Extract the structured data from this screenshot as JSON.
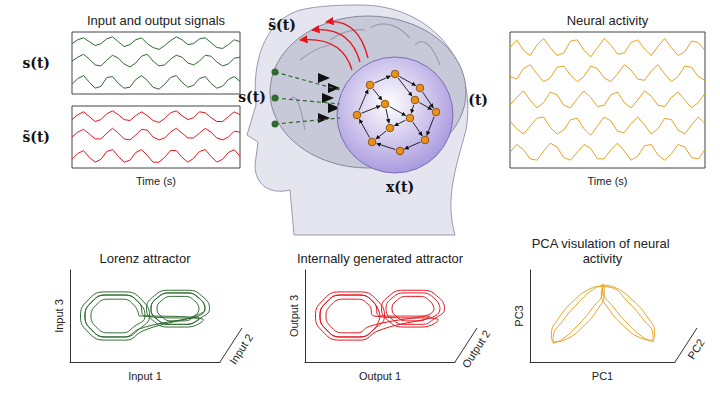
{
  "chart_data": [
    {
      "type": "line",
      "title": "Input and output signals",
      "ylabel": "s(t)",
      "tick_labels": false,
      "ylim": [
        0,
        3.2
      ],
      "series": [
        {
          "color": "#2f6a2f",
          "values": [
            2.6,
            2.8,
            2.9,
            2.7,
            2.5,
            2.6,
            2.85,
            2.95,
            2.7,
            2.45,
            2.55,
            2.8,
            2.9,
            2.6,
            2.4,
            2.3,
            2.5,
            2.75,
            2.95,
            2.8,
            2.55,
            2.6,
            2.85,
            2.9,
            2.65,
            2.4,
            2.35,
            2.55,
            2.8,
            2.7
          ]
        },
        {
          "color": "#2f6a2f",
          "values": [
            1.7,
            1.9,
            2.05,
            1.8,
            1.5,
            1.45,
            1.75,
            2.0,
            1.85,
            1.55,
            1.4,
            1.6,
            1.95,
            2.05,
            1.7,
            1.45,
            1.5,
            1.8,
            2.0,
            1.9,
            1.6,
            1.5,
            1.7,
            2.0,
            1.95,
            1.65,
            1.45,
            1.55,
            1.85,
            1.9
          ]
        },
        {
          "color": "#2f6a2f",
          "values": [
            0.5,
            0.8,
            0.95,
            0.6,
            0.3,
            0.4,
            0.85,
            0.9,
            0.55,
            0.3,
            0.35,
            0.75,
            0.95,
            0.7,
            0.35,
            0.25,
            0.5,
            0.85,
            0.95,
            0.6,
            0.35,
            0.45,
            0.8,
            0.9,
            0.55,
            0.3,
            0.4,
            0.75,
            0.9,
            0.65
          ]
        }
      ]
    },
    {
      "type": "line",
      "ylabel": "s̃(t)",
      "xlabel": "Time (s)",
      "tick_labels": false,
      "ylim": [
        0,
        3.2
      ],
      "series": [
        {
          "color": "#e8141c",
          "values": [
            2.5,
            2.75,
            2.9,
            2.65,
            2.4,
            2.5,
            2.8,
            2.95,
            2.75,
            2.5,
            2.45,
            2.7,
            2.9,
            2.7,
            2.45,
            2.35,
            2.55,
            2.85,
            2.95,
            2.7,
            2.5,
            2.6,
            2.9,
            2.85,
            2.6,
            2.4,
            2.4,
            2.65,
            2.9,
            2.75
          ]
        },
        {
          "color": "#e8141c",
          "values": [
            1.6,
            1.85,
            2.0,
            1.75,
            1.5,
            1.5,
            1.8,
            2.05,
            1.8,
            1.5,
            1.45,
            1.7,
            2.0,
            1.95,
            1.6,
            1.45,
            1.55,
            1.85,
            2.05,
            1.8,
            1.55,
            1.55,
            1.8,
            2.05,
            1.85,
            1.55,
            1.45,
            1.6,
            1.9,
            1.85
          ]
        },
        {
          "color": "#e8141c",
          "values": [
            0.45,
            0.75,
            0.9,
            0.55,
            0.3,
            0.45,
            0.85,
            0.95,
            0.6,
            0.3,
            0.4,
            0.8,
            0.95,
            0.65,
            0.3,
            0.3,
            0.55,
            0.9,
            0.9,
            0.55,
            0.3,
            0.5,
            0.85,
            0.95,
            0.6,
            0.3,
            0.45,
            0.8,
            0.95,
            0.6
          ]
        }
      ]
    },
    {
      "type": "line",
      "title": "Neural activity",
      "ylabel": "xᵢ(t)",
      "xlabel": "Time (s)",
      "tick_labels": false,
      "ylim": [
        0,
        5.2
      ],
      "series": [
        {
          "color": "#e6a322",
          "values": [
            4.6,
            4.9,
            4.5,
            4.3,
            4.7,
            4.95,
            4.6,
            4.3,
            4.4,
            4.85,
            4.9,
            4.5,
            4.25,
            4.6,
            4.95,
            4.7,
            4.35,
            4.4,
            4.8,
            4.9,
            4.55,
            4.3,
            4.65,
            4.95,
            4.6,
            4.3,
            4.45,
            4.85,
            4.8,
            4.5
          ]
        },
        {
          "color": "#e6a322",
          "values": [
            3.5,
            3.4,
            3.8,
            3.95,
            3.6,
            3.3,
            3.45,
            3.85,
            3.9,
            3.55,
            3.3,
            3.5,
            3.9,
            3.8,
            3.45,
            3.3,
            3.6,
            3.95,
            3.75,
            3.4,
            3.35,
            3.7,
            3.95,
            3.6,
            3.3,
            3.5,
            3.9,
            3.85,
            3.5,
            3.35
          ]
        },
        {
          "color": "#e6a322",
          "values": [
            2.4,
            2.7,
            2.95,
            2.6,
            2.3,
            2.5,
            2.9,
            2.8,
            2.4,
            2.3,
            2.65,
            2.95,
            2.7,
            2.35,
            2.4,
            2.8,
            2.9,
            2.5,
            2.3,
            2.6,
            2.95,
            2.75,
            2.4,
            2.35,
            2.7,
            2.9,
            2.6,
            2.3,
            2.5,
            2.85
          ]
        },
        {
          "color": "#e6a322",
          "values": [
            1.8,
            1.5,
            1.3,
            1.6,
            1.9,
            1.95,
            1.55,
            1.3,
            1.45,
            1.85,
            1.9,
            1.5,
            1.25,
            1.6,
            1.95,
            1.8,
            1.4,
            1.35,
            1.7,
            1.95,
            1.65,
            1.3,
            1.5,
            1.9,
            1.85,
            1.45,
            1.3,
            1.65,
            1.95,
            1.7
          ]
        },
        {
          "color": "#e6a322",
          "values": [
            0.6,
            0.9,
            0.7,
            0.35,
            0.3,
            0.65,
            0.95,
            0.8,
            0.4,
            0.3,
            0.6,
            0.9,
            0.75,
            0.35,
            0.35,
            0.7,
            0.95,
            0.65,
            0.3,
            0.45,
            0.85,
            0.9,
            0.5,
            0.3,
            0.55,
            0.9,
            0.8,
            0.4,
            0.35,
            0.7
          ]
        }
      ]
    },
    {
      "type": "line",
      "title": "Lorenz attractor",
      "xlabel": "Input 1",
      "ylabel": "Input 3",
      "zlabel": "Input 2",
      "tick_labels": false,
      "xlim": [
        0,
        100
      ],
      "ylim": [
        0,
        100
      ],
      "color": "#2f6a2f",
      "x": [
        46,
        42.9,
        34.9,
        25.1,
        17.1,
        14,
        17.1,
        25.1,
        34.9,
        42.9,
        50,
        46.2,
        36.2,
        23.8,
        13.8,
        10,
        13.8,
        23.8,
        36.2,
        46.2,
        53,
        48.6,
        37.1,
        22.9,
        11.4,
        7,
        11.4,
        22.9,
        37.1,
        48.6,
        86,
        83.3,
        76.3,
        67.7,
        60.7,
        58,
        60.7,
        67.7,
        76.3,
        83.3,
        90,
        86.6,
        77.6,
        66.4,
        57.4,
        54,
        57.4,
        66.4,
        77.6,
        86.6,
        93,
        89,
        78.5,
        65.5,
        55,
        51,
        55,
        65.5,
        78.5,
        89,
        50,
        46.2,
        36.2,
        23.8,
        13.8,
        10,
        13.8,
        23.8,
        36.2,
        46.2,
        90,
        86.6,
        77.6,
        66.4,
        57.4,
        54,
        57.4,
        66.4,
        77.6,
        86.6,
        46
      ],
      "values": [
        50,
        61.3,
        68.3,
        68.3,
        61.3,
        50,
        38.7,
        31.7,
        31.7,
        38.7,
        50,
        64.1,
        72.8,
        72.8,
        64.1,
        50,
        35.9,
        27.2,
        27.2,
        35.9,
        50,
        66.2,
        76.2,
        76.2,
        66.2,
        50,
        33.8,
        23.8,
        23.8,
        33.8,
        58,
        66.2,
        71.3,
        71.3,
        66.2,
        58,
        49.8,
        44.7,
        44.7,
        49.8,
        58,
        68.6,
        75.1,
        75.1,
        68.6,
        58,
        47.4,
        40.9,
        40.9,
        47.4,
        58,
        70.3,
        78,
        78,
        70.3,
        58,
        45.7,
        38,
        38,
        45.7,
        50,
        64.1,
        72.8,
        72.8,
        64.1,
        50,
        35.9,
        27.2,
        27.2,
        35.9,
        58,
        68.6,
        75.1,
        75.1,
        68.6,
        58,
        47.4,
        40.9,
        40.9,
        47.4,
        50
      ]
    },
    {
      "type": "line",
      "title": "Internally generated attractor",
      "xlabel": "Output 1",
      "ylabel": "Output 3",
      "zlabel": "Output 2",
      "tick_labels": false,
      "xlim": [
        0,
        100
      ],
      "ylim": [
        0,
        100
      ],
      "color": "#e8141c",
      "x": [
        50,
        46.2,
        36.2,
        23.8,
        13.8,
        10,
        13.8,
        23.8,
        36.2,
        46.2,
        53,
        48.6,
        37.1,
        22.9,
        11.4,
        7,
        11.4,
        22.9,
        37.1,
        48.6,
        90,
        86.6,
        77.6,
        66.4,
        57.4,
        54,
        57.4,
        66.4,
        77.6,
        86.6,
        93,
        89,
        78.5,
        65.5,
        55,
        51,
        55,
        65.5,
        78.5,
        89,
        46,
        42.9,
        34.9,
        25.1,
        17.1,
        14,
        17.1,
        25.1,
        34.9,
        42.9,
        86,
        83.3,
        76.3,
        67.7,
        60.7,
        58,
        60.7,
        67.7,
        76.3,
        83.3,
        50,
        46.2,
        36.2,
        23.8,
        13.8,
        10,
        13.8,
        23.8,
        36.2,
        46.2,
        50
      ],
      "values": [
        50,
        64.1,
        72.8,
        72.8,
        64.1,
        50,
        35.9,
        27.2,
        27.2,
        35.9,
        50,
        66.2,
        76.2,
        76.2,
        66.2,
        50,
        33.8,
        23.8,
        23.8,
        33.8,
        58,
        68.6,
        75.1,
        75.1,
        68.6,
        58,
        47.4,
        40.9,
        40.9,
        47.4,
        58,
        70.3,
        78,
        78,
        70.3,
        58,
        45.7,
        38,
        38,
        45.7,
        50,
        61.3,
        68.3,
        68.3,
        61.3,
        50,
        38.7,
        31.7,
        31.7,
        38.7,
        58,
        66.2,
        71.3,
        71.3,
        66.2,
        58,
        49.8,
        44.7,
        44.7,
        49.8,
        50,
        64.1,
        72.8,
        72.8,
        64.1,
        50,
        35.9,
        27.2,
        27.2,
        35.9,
        50
      ]
    },
    {
      "type": "line",
      "title": "PCA visulation of neural activity",
      "xlabel": "PC1",
      "ylabel": "PC3",
      "zlabel": "PC2",
      "tick_labels": false,
      "xlim": [
        0,
        100
      ],
      "ylim": [
        0,
        100
      ],
      "color": "#e6a322",
      "x": [
        50.1,
        43.7,
        33.3,
        22.7,
        16.1,
        15.9,
        22.3,
        32.7,
        43.3,
        49.9,
        50,
        50.2,
        57.1,
        67.9,
        78.6,
        85,
        84.8,
        77.9,
        67.1,
        56.4,
        49.1,
        40.8,
        29.6,
        19.6,
        14.8,
        16.9,
        25.2,
        36.4,
        46.4,
        51.2,
        51,
        49.1,
        54.1,
        64.3,
        75.7,
        84,
        85.9,
        80.9,
        70.7,
        59.3,
        50.1
      ],
      "values": [
        83.7,
        79.2,
        64.5,
        44.9,
        28,
        20.3,
        24.8,
        39.5,
        59.1,
        76,
        85,
        77.3,
        60.4,
        41,
        26.3,
        22,
        29.7,
        46.6,
        66,
        80.7,
        82,
        79.1,
        65.8,
        47.2,
        30.5,
        22,
        24.9,
        38.2,
        56.8,
        73.5,
        83.3,
        74.7,
        58.1,
        39.7,
        26.5,
        23.7,
        32.3,
        48.9,
        67.3,
        80.5,
        83.7
      ]
    }
  ],
  "diagram": {
    "input_label": "s(t)",
    "output_label": "s̃(t)",
    "state_label": "x(t)"
  }
}
